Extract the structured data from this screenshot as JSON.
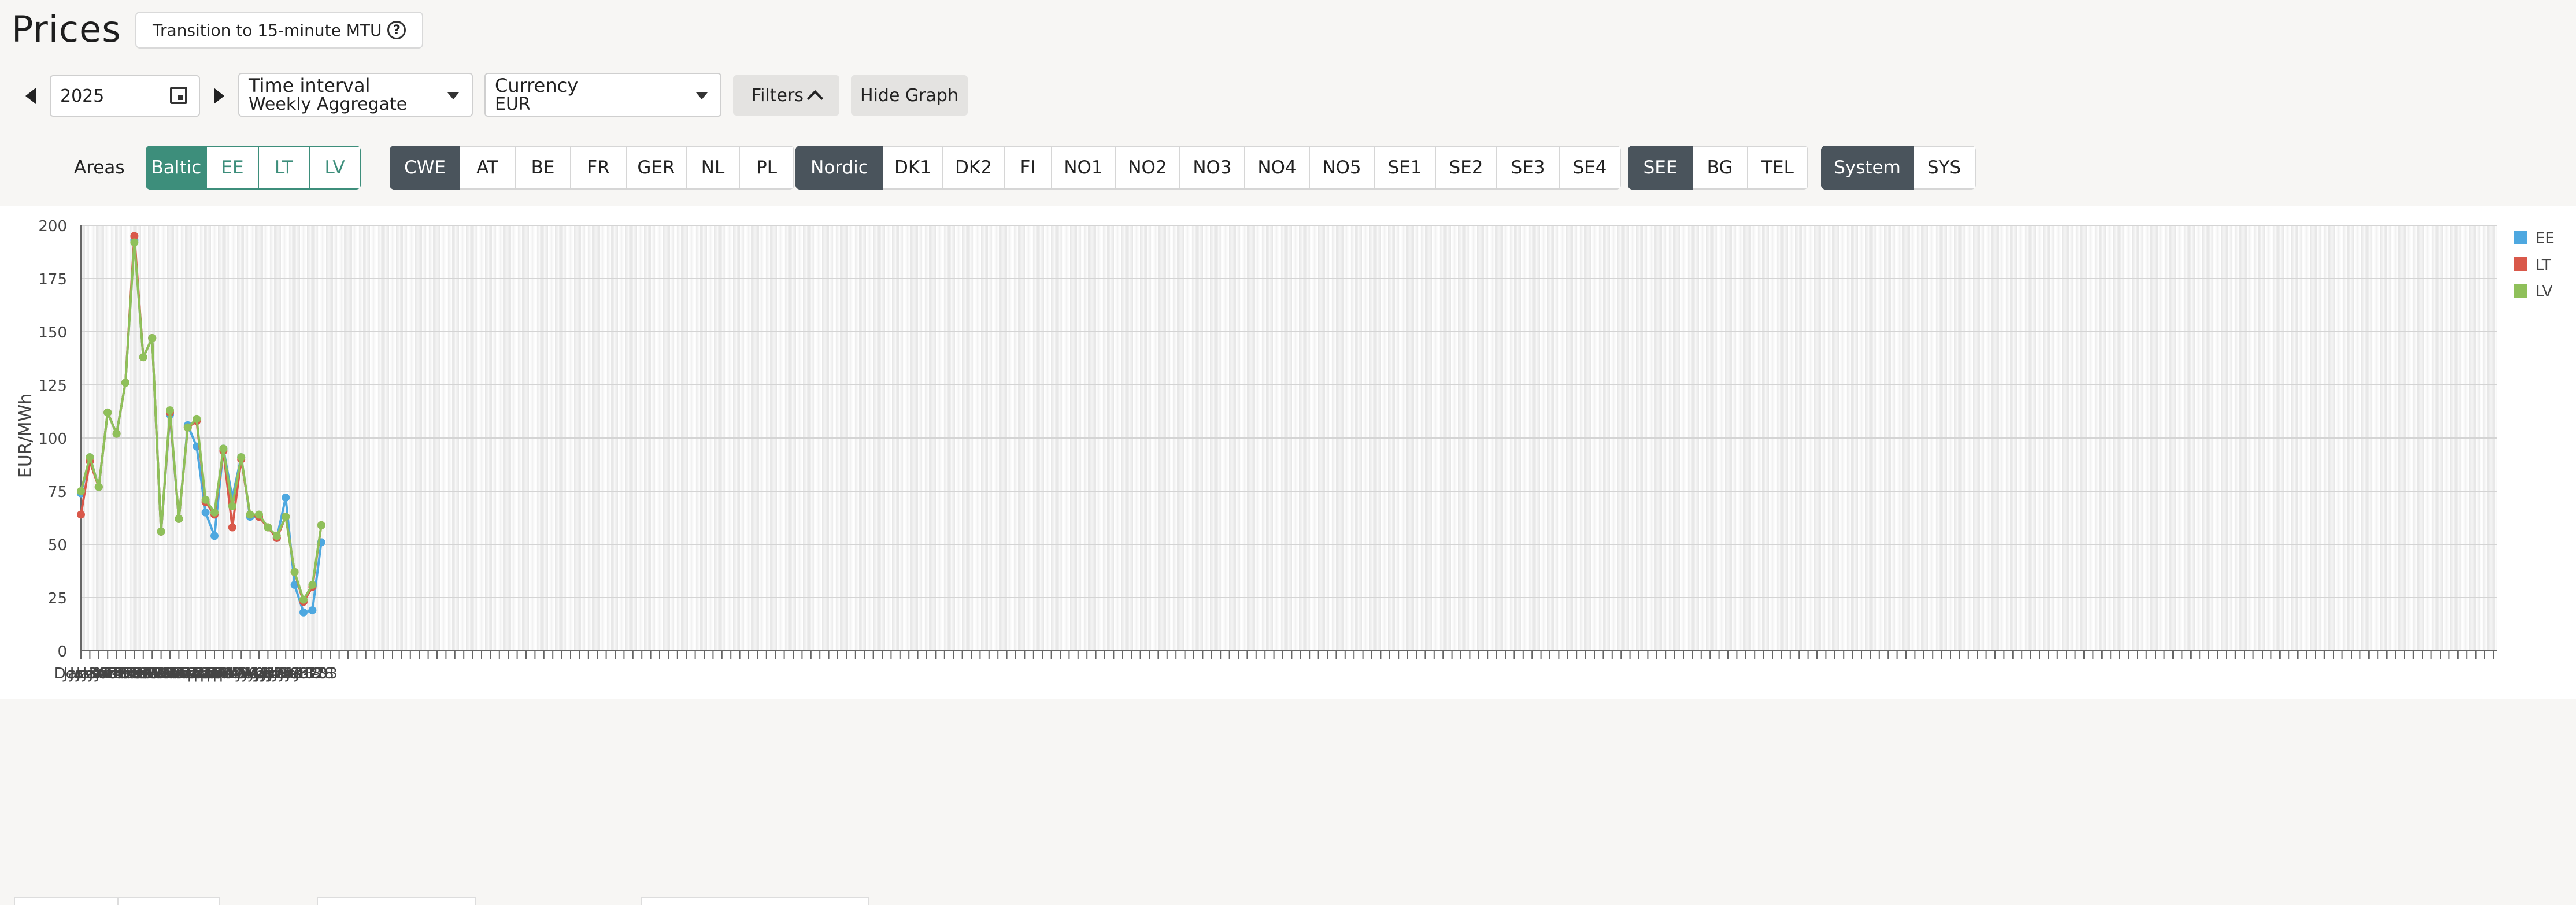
{
  "page": {
    "title": "Prices"
  },
  "header": {
    "mtu_button": "Transition to 15-minute MTU",
    "help_icon": "?"
  },
  "toolbar": {
    "year": "2025",
    "time_interval": {
      "label": "Time interval",
      "value": "Weekly Aggregate"
    },
    "currency": {
      "label": "Currency",
      "value": "EUR"
    },
    "filters_label": "Filters",
    "hide_graph_label": "Hide Graph"
  },
  "areas": {
    "label": "Areas",
    "groups": [
      {
        "name": "baltic",
        "items": [
          "Baltic",
          "EE",
          "LT",
          "LV"
        ]
      },
      {
        "name": "cwe",
        "items": [
          "CWE",
          "AT",
          "BE",
          "FR",
          "GER",
          "NL",
          "PL"
        ]
      },
      {
        "name": "nordic",
        "items": [
          "Nordic",
          "DK1",
          "DK2",
          "FI",
          "NO1",
          "NO2",
          "NO3",
          "NO4",
          "NO5",
          "SE1",
          "SE2",
          "SE3",
          "SE4"
        ]
      },
      {
        "name": "see",
        "items": [
          "SEE",
          "BG",
          "TEL"
        ]
      },
      {
        "name": "system",
        "items": [
          "System",
          "SYS"
        ]
      }
    ]
  },
  "colors": {
    "EE": "#4ea8e0",
    "LT": "#d9584a",
    "LV": "#8fc05a",
    "active_dark": "#4a545c",
    "active_teal": "#3d8e7b"
  },
  "chart_data": {
    "type": "line",
    "title": "",
    "xlabel": "",
    "ylabel": "EUR/MWh",
    "ylim": [
      0,
      200
    ],
    "yticks": [
      0,
      25,
      50,
      75,
      100,
      125,
      150,
      175,
      200
    ],
    "grid": true,
    "legend_position": "top-right",
    "x_tick_labels": [
      "Dec-30",
      "Jan-04",
      "Jan-09",
      "Jan-14",
      "Jan-19",
      "Jan-24",
      "Jan-29",
      "Feb-03",
      "Feb-08",
      "Feb-13",
      "Feb-18",
      "Feb-23",
      "Feb-28",
      "Mar-05",
      "Mar-10",
      "Mar-15",
      "Mar-20",
      "Mar-25",
      "Mar-30",
      "Apr-04",
      "Apr-09",
      "Apr-14",
      "Apr-19",
      "Apr-24",
      "Apr-29",
      "May-04",
      "May-09",
      "May-14",
      "May-19",
      "May-24",
      "May-29",
      "Jun-03",
      "Jun-08",
      "Jun-13",
      "Jun-18",
      "Jun-23",
      "Jun-28",
      "Jul-03"
    ],
    "x": [
      "Dec-30",
      "Jan-06",
      "Jan-13",
      "Jan-20",
      "Jan-27",
      "Feb-03",
      "Feb-10",
      "Feb-17",
      "Feb-24",
      "Mar-03",
      "Mar-10",
      "Mar-17",
      "Mar-24",
      "Mar-31",
      "Apr-07",
      "Apr-14",
      "Apr-21",
      "Apr-28",
      "May-05",
      "May-12",
      "May-19",
      "May-26",
      "Jun-02",
      "Jun-09",
      "Jun-16",
      "Jun-23",
      "Jun-30",
      "Jul-07"
    ],
    "series": [
      {
        "name": "EE",
        "values": [
          74,
          91,
          77,
          112,
          102,
          126,
          193,
          138,
          147,
          56,
          111,
          62,
          106,
          96,
          65,
          54,
          95,
          72,
          91,
          63,
          63,
          58,
          53,
          72,
          31,
          18,
          19,
          51
        ]
      },
      {
        "name": "LT",
        "values": [
          64,
          89,
          77,
          112,
          102,
          126,
          195,
          138,
          147,
          56,
          112,
          62,
          105,
          108,
          70,
          64,
          94,
          58,
          90,
          64,
          63,
          58,
          53,
          63,
          37,
          23,
          30,
          59
        ]
      },
      {
        "name": "LV",
        "values": [
          75,
          91,
          77,
          112,
          102,
          126,
          192,
          138,
          147,
          56,
          113,
          62,
          105,
          109,
          71,
          65,
          95,
          68,
          91,
          64,
          64,
          58,
          54,
          63,
          37,
          24,
          31,
          59
        ]
      }
    ]
  }
}
